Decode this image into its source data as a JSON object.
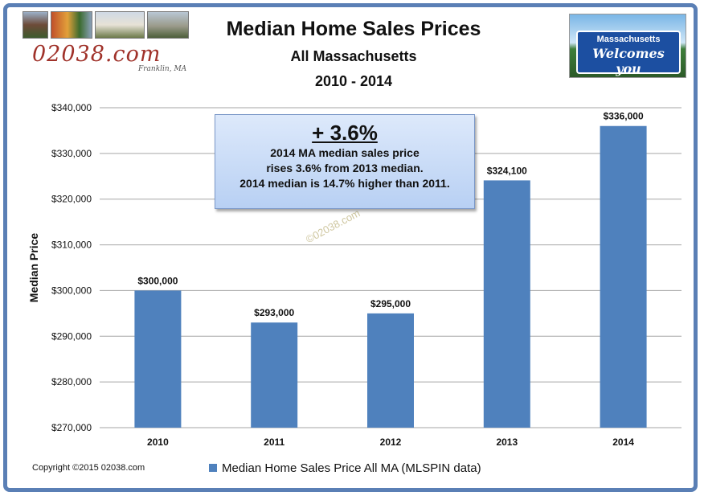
{
  "header": {
    "title": "Median Home Sales Prices",
    "subtitle": "All Massachusetts",
    "years": "2010 - 2014",
    "logo": "02038.com",
    "logo_sub": "Franklin, MA"
  },
  "sign": {
    "line1": "Massachusetts",
    "line2": "Welcomes you"
  },
  "callout": {
    "headline": "+ 3.6%",
    "lines": [
      "2014 MA median sales price",
      "rises 3.6% from 2013 median.",
      "2014 median is 14.7% higher than 2011."
    ]
  },
  "watermark": "©02038.com",
  "footer": {
    "copyright": "Copyright ©2015 02038.com"
  },
  "colors": {
    "bar": "#4f81bd",
    "frame": "#5a7fb5",
    "grid": "#a6a6a6"
  },
  "chart_data": {
    "type": "bar",
    "categories": [
      "2010",
      "2011",
      "2012",
      "2013",
      "2014"
    ],
    "series": [
      {
        "name": "Median Home Sales Price All MA (MLSPIN data)",
        "values": [
          300000,
          293000,
          295000,
          324100,
          336000
        ]
      }
    ],
    "data_labels": [
      "$300,000",
      "$293,000",
      "$295,000",
      "$324,100",
      "$336,000"
    ],
    "ylabel": "Median Price",
    "ylim": [
      270000,
      340000
    ],
    "yticks": [
      270000,
      280000,
      290000,
      300000,
      310000,
      320000,
      330000,
      340000
    ],
    "ytick_labels": [
      "$270,000",
      "$280,000",
      "$290,000",
      "$300,000",
      "$310,000",
      "$320,000",
      "$330,000",
      "$340,000"
    ],
    "grid": true,
    "legend": "bottom"
  }
}
